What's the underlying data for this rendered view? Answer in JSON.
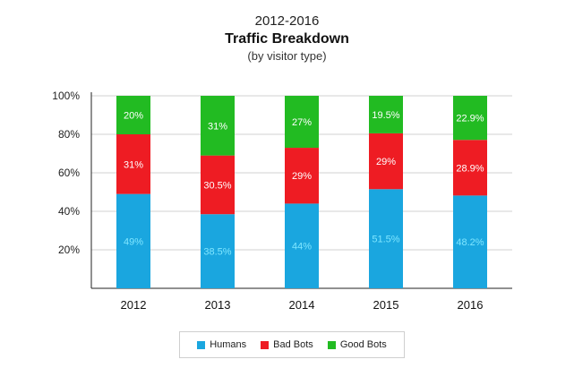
{
  "titles": {
    "years": "2012-2016",
    "title": "Traffic Breakdown",
    "subtitle": "(by visitor type)"
  },
  "chart_data": {
    "type": "bar",
    "stacked": true,
    "title": "Traffic Breakdown",
    "subtitle": "(by visitor type)",
    "xlabel": "",
    "ylabel": "",
    "ylim": [
      0,
      100
    ],
    "yticks": [
      "20%",
      "40%",
      "60%",
      "80%",
      "100%"
    ],
    "categories": [
      "2012",
      "2013",
      "2014",
      "2015",
      "2016"
    ],
    "series": [
      {
        "name": "Humans",
        "color": "#1aa6df",
        "label_color": "#7fe6ff",
        "values": [
          49,
          38.5,
          44,
          51.5,
          48.2
        ],
        "labels": [
          "49%",
          "38.5%",
          "44%",
          "51.5%",
          "48.2%"
        ]
      },
      {
        "name": "Bad Bots",
        "color": "#ee1c23",
        "label_color": "#ffffff",
        "values": [
          31,
          30.5,
          29,
          29,
          28.9
        ],
        "labels": [
          "31%",
          "30.5%",
          "29%",
          "29%",
          "28.9%"
        ]
      },
      {
        "name": "Good Bots",
        "color": "#22bb22",
        "label_color": "#ffffff",
        "values": [
          20,
          31,
          27,
          19.5,
          22.9
        ],
        "labels": [
          "20%",
          "31%",
          "27%",
          "19.5%",
          "22.9%"
        ]
      }
    ],
    "legend": {
      "position": "bottom-center",
      "items": [
        "Humans",
        "Bad Bots",
        "Good Bots"
      ]
    }
  }
}
